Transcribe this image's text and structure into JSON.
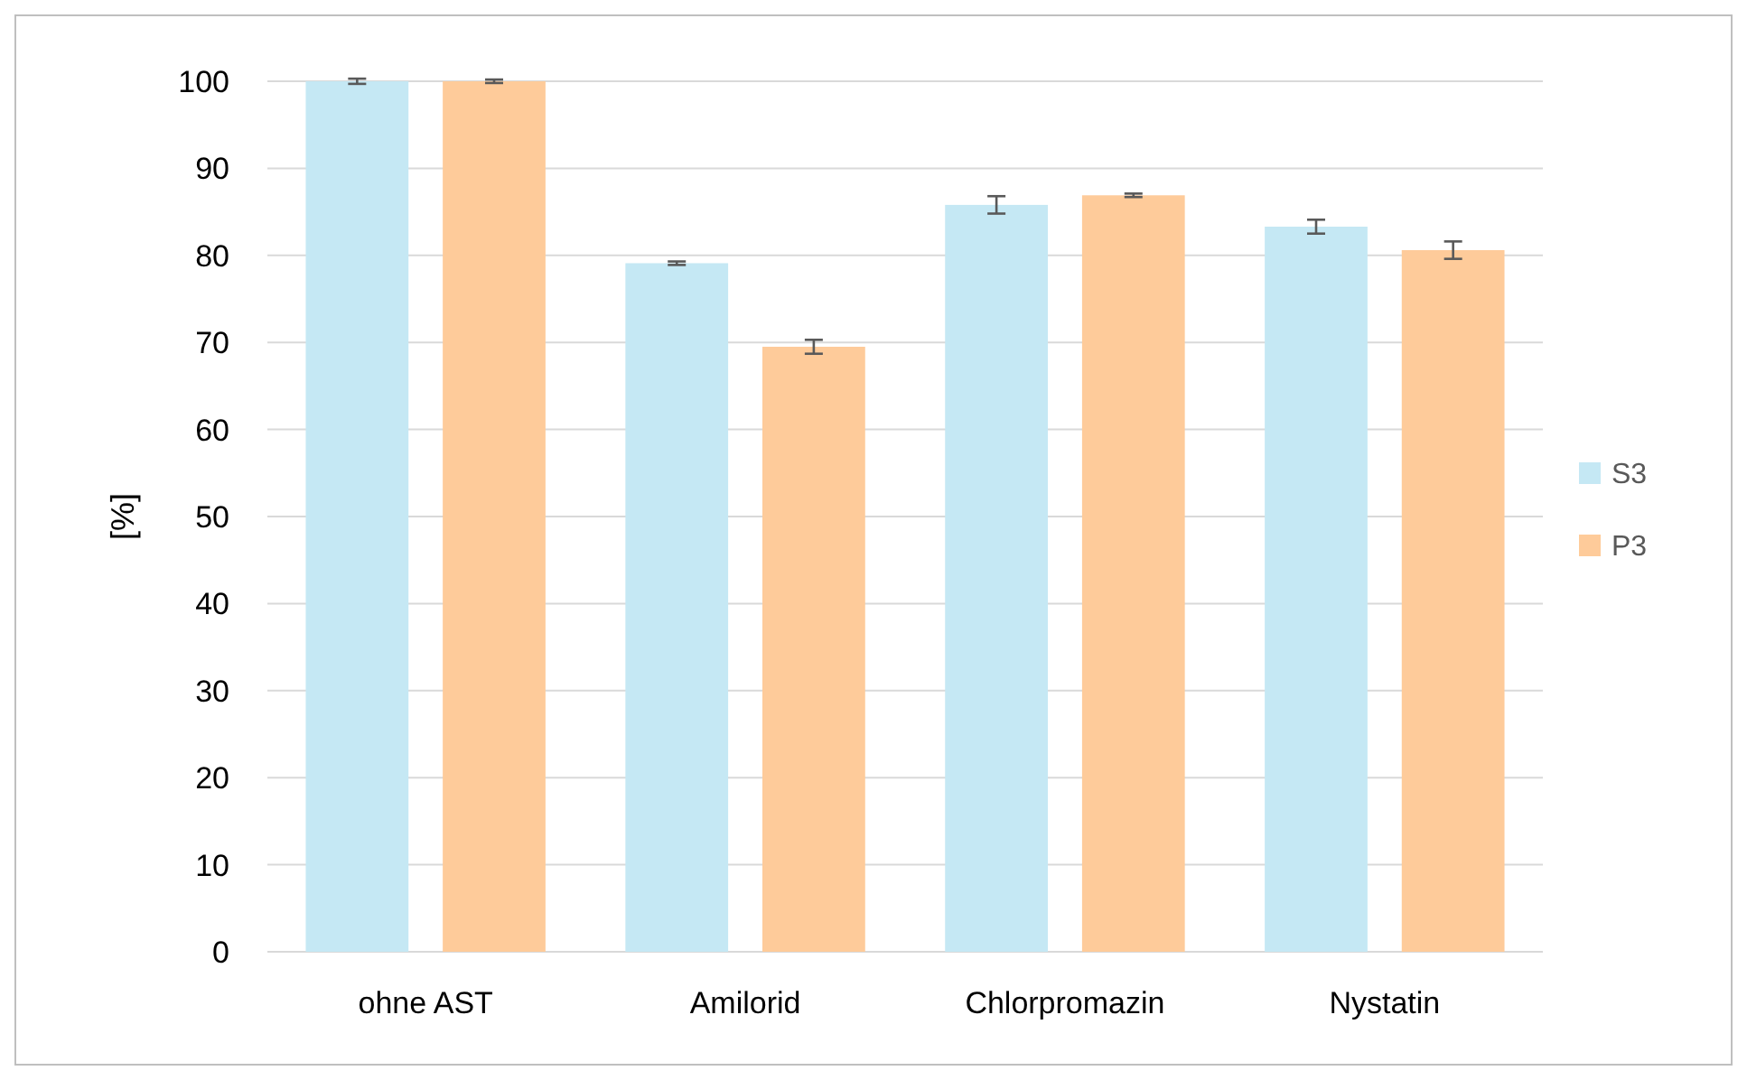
{
  "chart_data": {
    "type": "bar",
    "ylabel": "[%]",
    "categories": [
      "ohne AST",
      "Amilorid",
      "Chlorpromazin",
      "Nystatin"
    ],
    "series": [
      {
        "name": "S3",
        "color": "#c5e8f4",
        "values": [
          100,
          79.1,
          85.8,
          83.3
        ],
        "errors": [
          0.3,
          0.2,
          1.0,
          0.8
        ]
      },
      {
        "name": "P3",
        "color": "#fecb9a",
        "values": [
          100,
          69.5,
          86.9,
          80.6
        ],
        "errors": [
          0.2,
          0.8,
          0.2,
          1.0
        ]
      }
    ],
    "ylim": [
      0,
      100
    ],
    "yticks": [
      0,
      10,
      20,
      30,
      40,
      50,
      60,
      70,
      80,
      90,
      100
    ],
    "grid": "y",
    "legend": "right"
  }
}
